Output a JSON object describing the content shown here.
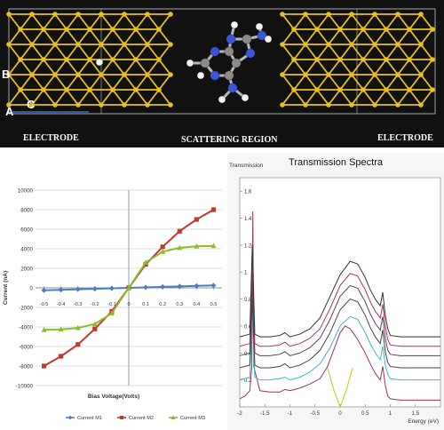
{
  "top_panel": {
    "labels": {
      "left": "ELECTRODE",
      "center": "SCATTERING REGION",
      "right": "ELECTRODE"
    },
    "axis_letters": {
      "a": "A",
      "b": "B",
      "c": "C"
    },
    "colors": {
      "background": "#111111",
      "gold": "#e8c020",
      "carbon": "#8a8a8a",
      "nitrogen": "#3a55d8",
      "hydrogen": "#f2f2f2"
    }
  },
  "chart_data": [
    {
      "type": "line",
      "title": "",
      "xlabel": "Bias Voltage(Volts)",
      "ylabel": "Current (nA)",
      "x": [
        -0.5,
        -0.4,
        -0.3,
        -0.2,
        -0.1,
        0,
        0.1,
        0.2,
        0.3,
        0.4,
        0.5
      ],
      "x_tick_labels": [
        "-0.5",
        "-0.4",
        "-0.3",
        "-0.2",
        "-0.1",
        "0",
        "0.1",
        "0.2",
        "0.3",
        "0.4",
        "0.5"
      ],
      "ylim": [
        -10000,
        10000
      ],
      "y_ticks": [
        -10000,
        -8000,
        -6000,
        -4000,
        -2000,
        0,
        2000,
        4000,
        6000,
        8000,
        10000
      ],
      "y_tick_labels": [
        "-10000",
        "-8000",
        "-6000",
        "-4000",
        "-2000",
        "0",
        "2000",
        "4000",
        "6000",
        "8000",
        "10000"
      ],
      "legend_position": "bottom",
      "grid": "horizontal",
      "series": [
        {
          "name": "Current M1",
          "color": "#4a7ec2",
          "marker": "diamond",
          "values": [
            -250,
            -200,
            -150,
            -100,
            -50,
            0,
            50,
            100,
            150,
            200,
            250
          ]
        },
        {
          "name": "Current M2",
          "color": "#c0392b",
          "marker": "square",
          "values": [
            -8000,
            -7000,
            -5800,
            -4200,
            -2400,
            0,
            2400,
            4200,
            5800,
            7000,
            8000
          ]
        },
        {
          "name": "Current M3",
          "color": "#8dba2e",
          "marker": "triangle",
          "values": [
            -4300,
            -4250,
            -4100,
            -3700,
            -2600,
            0,
            2600,
            3700,
            4100,
            4250,
            4300
          ]
        }
      ]
    },
    {
      "type": "line",
      "title": "Transmission Spectra",
      "xlabel": "Energy (eV)",
      "ylabel": "Transmission",
      "xlim": [
        -2,
        2
      ],
      "ylim": [
        0,
        1.7
      ],
      "x_ticks": [
        -2,
        -1.5,
        -1,
        -0.5,
        0,
        0.5,
        1,
        1.5
      ],
      "x_tick_labels": [
        "-2",
        "-1.5",
        "-1",
        "-0.5",
        "0",
        "0.5",
        "1",
        "1.5"
      ],
      "y_ticks": [
        0.2,
        0.4,
        0.6,
        0.8,
        1,
        1.2,
        1.4,
        1.6
      ],
      "y_tick_labels": [
        "0.2",
        "0.4",
        "0.6",
        "0.8",
        "1",
        "1.2",
        "1.4",
        "1.6"
      ],
      "grid": false,
      "series": [
        {
          "color": "#c8c820",
          "x": [
            -0.25,
            -0.12,
            0,
            0.12,
            0.25
          ],
          "values": [
            0.29,
            0.12,
            0.0,
            0.12,
            0.29
          ]
        },
        {
          "color": "#a0305a",
          "x": [
            -2,
            -1.9,
            -1.8,
            -1.76,
            -1.74,
            -1.72,
            -1.6,
            -1.4,
            -1.2,
            -1.1,
            -1.0,
            -0.8,
            -0.6,
            -0.4,
            -0.25,
            -0.1,
            0,
            0.1,
            0.2,
            0.35,
            0.5,
            0.6,
            0.7,
            0.8,
            0.85,
            0.9,
            0.95,
            1.0,
            1.2,
            1.4,
            1.6,
            1.8,
            2.0
          ],
          "values": [
            0.06,
            0.08,
            0.12,
            0.3,
            1.45,
            0.3,
            0.12,
            0.11,
            0.11,
            0.13,
            0.12,
            0.14,
            0.17,
            0.21,
            0.3,
            0.45,
            0.55,
            0.6,
            0.58,
            0.5,
            0.4,
            0.32,
            0.25,
            0.2,
            0.3,
            0.16,
            0.08,
            0.06,
            0.05,
            0.05,
            0.05,
            0.05,
            0.05
          ]
        },
        {
          "color": "#40b8c8",
          "x": [
            -2,
            -1.9,
            -1.8,
            -1.75,
            -1.7,
            -1.6,
            -1.4,
            -1.2,
            -1.1,
            -1.0,
            -0.8,
            -0.6,
            -0.4,
            -0.2,
            0,
            0.2,
            0.35,
            0.5,
            0.6,
            0.7,
            0.8,
            0.85,
            0.9,
            0.95,
            1.0,
            1.2,
            1.4,
            1.6,
            1.8,
            2.0
          ],
          "values": [
            0.2,
            0.21,
            0.22,
            0.7,
            0.22,
            0.2,
            0.2,
            0.21,
            0.22,
            0.2,
            0.22,
            0.26,
            0.32,
            0.44,
            0.6,
            0.67,
            0.65,
            0.55,
            0.47,
            0.4,
            0.35,
            0.45,
            0.31,
            0.24,
            0.21,
            0.2,
            0.2,
            0.2,
            0.2,
            0.2
          ]
        },
        {
          "color": "#444444",
          "x": [
            -2,
            -1.9,
            -1.8,
            -1.75,
            -1.7,
            -1.6,
            -1.4,
            -1.2,
            -1.1,
            -1.0,
            -0.8,
            -0.6,
            -0.4,
            -0.2,
            0,
            0.2,
            0.35,
            0.5,
            0.6,
            0.7,
            0.8,
            0.85,
            0.9,
            0.95,
            1.0,
            1.2,
            1.4,
            1.6,
            1.8,
            2.0
          ],
          "values": [
            0.29,
            0.3,
            0.31,
            0.8,
            0.31,
            0.29,
            0.29,
            0.3,
            0.32,
            0.29,
            0.31,
            0.35,
            0.42,
            0.55,
            0.72,
            0.8,
            0.78,
            0.68,
            0.59,
            0.52,
            0.47,
            0.57,
            0.41,
            0.33,
            0.3,
            0.29,
            0.29,
            0.29,
            0.29,
            0.29
          ]
        },
        {
          "color": "#604060",
          "x": [
            -2,
            -1.9,
            -1.8,
            -1.75,
            -1.7,
            -1.6,
            -1.4,
            -1.2,
            -1.1,
            -1.0,
            -0.8,
            -0.6,
            -0.4,
            -0.2,
            0,
            0.2,
            0.35,
            0.5,
            0.6,
            0.7,
            0.8,
            0.85,
            0.9,
            0.95,
            1.0,
            1.2,
            1.4,
            1.6,
            1.8,
            2.0
          ],
          "values": [
            0.38,
            0.39,
            0.4,
            0.95,
            0.4,
            0.38,
            0.38,
            0.39,
            0.41,
            0.38,
            0.4,
            0.44,
            0.51,
            0.65,
            0.82,
            0.9,
            0.88,
            0.78,
            0.69,
            0.62,
            0.57,
            0.67,
            0.51,
            0.42,
            0.39,
            0.38,
            0.38,
            0.38,
            0.38,
            0.38
          ]
        },
        {
          "color": "#b03060",
          "x": [
            -2,
            -1.9,
            -1.8,
            -1.75,
            -1.7,
            -1.6,
            -1.4,
            -1.2,
            -1.1,
            -1.0,
            -0.8,
            -0.6,
            -0.4,
            -0.2,
            0,
            0.2,
            0.35,
            0.5,
            0.6,
            0.7,
            0.8,
            0.85,
            0.9,
            0.95,
            1.0,
            1.2,
            1.4,
            1.6,
            1.8,
            2.0
          ],
          "values": [
            0.45,
            0.46,
            0.47,
            1.1,
            0.47,
            0.45,
            0.45,
            0.46,
            0.48,
            0.45,
            0.47,
            0.51,
            0.58,
            0.73,
            0.9,
            0.99,
            0.97,
            0.87,
            0.78,
            0.71,
            0.66,
            0.76,
            0.6,
            0.5,
            0.46,
            0.45,
            0.45,
            0.45,
            0.45,
            0.45
          ]
        },
        {
          "color": "#333333",
          "x": [
            -2,
            -1.9,
            -1.8,
            -1.75,
            -1.7,
            -1.6,
            -1.4,
            -1.2,
            -1.1,
            -1.0,
            -0.8,
            -0.6,
            -0.4,
            -0.2,
            0,
            0.2,
            0.35,
            0.5,
            0.6,
            0.7,
            0.8,
            0.85,
            0.9,
            0.95,
            1.0,
            1.2,
            1.4,
            1.6,
            1.8,
            2.0
          ],
          "values": [
            0.52,
            0.53,
            0.54,
            1.2,
            0.54,
            0.52,
            0.52,
            0.53,
            0.55,
            0.52,
            0.54,
            0.58,
            0.66,
            0.82,
            0.98,
            1.08,
            1.06,
            0.96,
            0.87,
            0.8,
            0.75,
            0.85,
            0.68,
            0.58,
            0.53,
            0.52,
            0.52,
            0.52,
            0.52,
            0.52
          ]
        }
      ]
    }
  ]
}
